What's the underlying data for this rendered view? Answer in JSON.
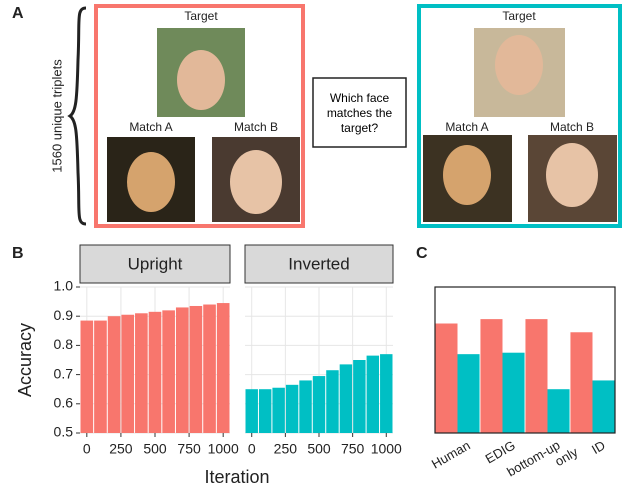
{
  "panel_a": {
    "label": "A",
    "side_label": "1560 unique triplets",
    "upright": {
      "target": "Target",
      "match_a": "Match A",
      "match_b": "Match B"
    },
    "question": "Which face matches the target?",
    "inverted": {
      "target": "Target",
      "match_a": "Match A",
      "match_b": "Match B"
    }
  },
  "panel_b_label": "B",
  "panel_c_label": "C",
  "chart_data": [
    {
      "type": "bar",
      "title": "Upright",
      "ylabel": "Accuracy",
      "xlabel": "Iteration",
      "x": [
        0,
        100,
        200,
        300,
        400,
        500,
        600,
        700,
        800,
        900,
        1000
      ],
      "values": [
        0.885,
        0.885,
        0.9,
        0.905,
        0.91,
        0.915,
        0.92,
        0.93,
        0.935,
        0.94,
        0.945
      ],
      "color": "#f8766d",
      "xlim": [
        -50,
        1050
      ],
      "xticks": [
        0,
        250,
        500,
        750,
        1000
      ],
      "ylim": [
        0.5,
        1
      ],
      "yticks": [
        0.5,
        0.6,
        0.7,
        0.8,
        0.9,
        {
          "value": 1,
          "label": "1.0"
        }
      ],
      "grid": true
    },
    {
      "type": "bar",
      "title": "Inverted",
      "x": [
        0,
        100,
        200,
        300,
        400,
        500,
        600,
        700,
        800,
        900,
        1000
      ],
      "values": [
        0.65,
        0.65,
        0.655,
        0.665,
        0.68,
        0.695,
        0.715,
        0.735,
        0.75,
        0.765,
        0.77
      ],
      "color": "#00bfc4",
      "xlim": [
        -50,
        1050
      ],
      "xticks": [
        0,
        250,
        500,
        750,
        1000
      ],
      "ylim": [
        0.5,
        1
      ],
      "grid": true
    },
    {
      "type": "grouped_bar",
      "categories": [
        "Human",
        "EDIG",
        "bottom-up only",
        "ID"
      ],
      "series": [
        {
          "color": "#f8766d",
          "values": [
            0.875,
            0.89,
            0.89,
            0.845
          ]
        },
        {
          "color": "#00bfc4",
          "values": [
            0.77,
            0.775,
            0.65,
            0.68
          ]
        }
      ],
      "ylim": [
        0.5,
        1
      ]
    }
  ]
}
